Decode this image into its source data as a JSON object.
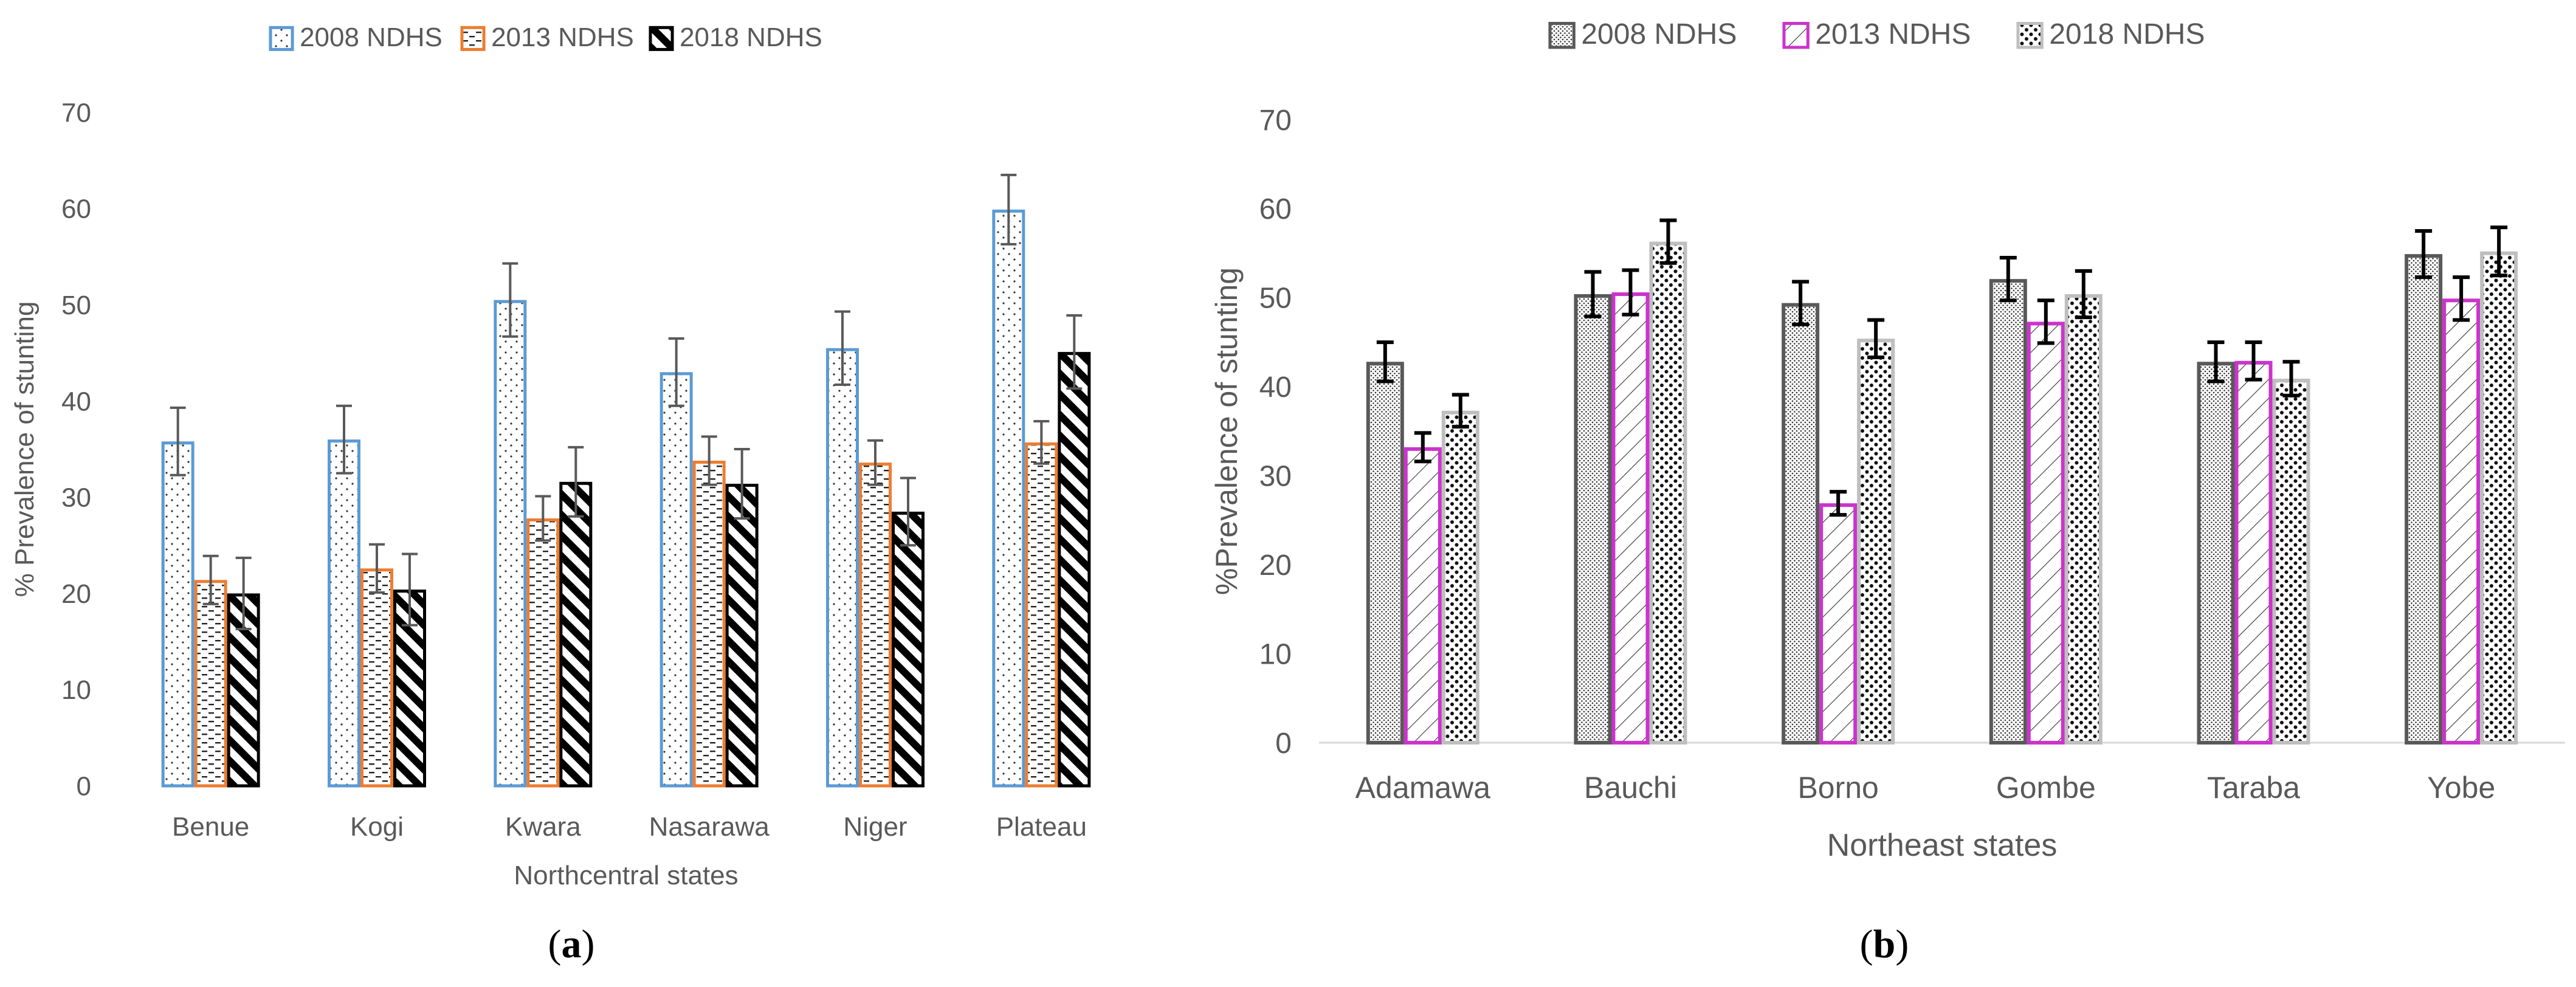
{
  "chart_data": [
    {
      "type": "bar",
      "panel": "(a)",
      "panel_letter": "a",
      "xlabel": "Northcentral states",
      "ylabel": "% Prevalence of stunting",
      "ylim": [
        0,
        70
      ],
      "yticks": [
        0,
        10,
        20,
        30,
        40,
        50,
        60,
        70
      ],
      "categories": [
        "Benue",
        "Kogi",
        "Kwara",
        "Nasarawa",
        "Niger",
        "Plateau"
      ],
      "grid": false,
      "legend_position": "top",
      "series": [
        {
          "name": "2008 NDHS",
          "color": "#5b9bd5",
          "pattern": "dots",
          "values": [
            35.8,
            36.0,
            50.5,
            43.0,
            45.5,
            59.9
          ],
          "errors": [
            3.5,
            3.5,
            3.8,
            3.5,
            3.8,
            3.6
          ]
        },
        {
          "name": "2013 NDHS",
          "color": "#ed7d31",
          "pattern": "dashes",
          "values": [
            21.4,
            22.6,
            27.8,
            33.8,
            33.6,
            35.7
          ],
          "errors": [
            2.5,
            2.5,
            2.3,
            2.5,
            2.3,
            2.2
          ]
        },
        {
          "name": "2018 NDHS",
          "color": "#000000",
          "pattern": "diagonal",
          "values": [
            20.0,
            20.4,
            31.6,
            31.4,
            28.5,
            45.1
          ],
          "errors": [
            3.7,
            3.7,
            3.6,
            3.6,
            3.5,
            3.8
          ]
        }
      ]
    },
    {
      "type": "bar",
      "panel": "(b)",
      "panel_letter": "b",
      "xlabel": "Northeast states",
      "ylabel": "%Prevalence of stunting",
      "ylim": [
        0,
        70
      ],
      "yticks": [
        0,
        10,
        20,
        30,
        40,
        50,
        60,
        70
      ],
      "categories": [
        "Adamawa",
        "Bauchi",
        "Borno",
        "Gombe",
        "Taraba",
        "Yobe"
      ],
      "grid": false,
      "legend_position": "top",
      "series": [
        {
          "name": "2008 NDHS",
          "color": "#595959",
          "pattern": "finedots",
          "values": [
            42.8,
            50.4,
            49.4,
            52.1,
            42.8,
            54.9
          ],
          "errors": [
            2.2,
            2.5,
            2.4,
            2.4,
            2.2,
            2.6
          ]
        },
        {
          "name": "2013 NDHS",
          "color": "#cc33cc",
          "pattern": "crosshatch",
          "values": [
            33.2,
            50.6,
            26.9,
            47.3,
            42.9,
            49.9
          ],
          "errors": [
            1.6,
            2.5,
            1.3,
            2.4,
            2.1,
            2.4
          ]
        },
        {
          "name": "2018 NDHS",
          "color": "#bfbfbf",
          "pattern": "bigdots",
          "values": [
            37.3,
            56.3,
            45.4,
            50.4,
            40.9,
            55.2
          ],
          "errors": [
            1.8,
            2.4,
            2.1,
            2.6,
            1.9,
            2.7
          ]
        }
      ]
    }
  ]
}
